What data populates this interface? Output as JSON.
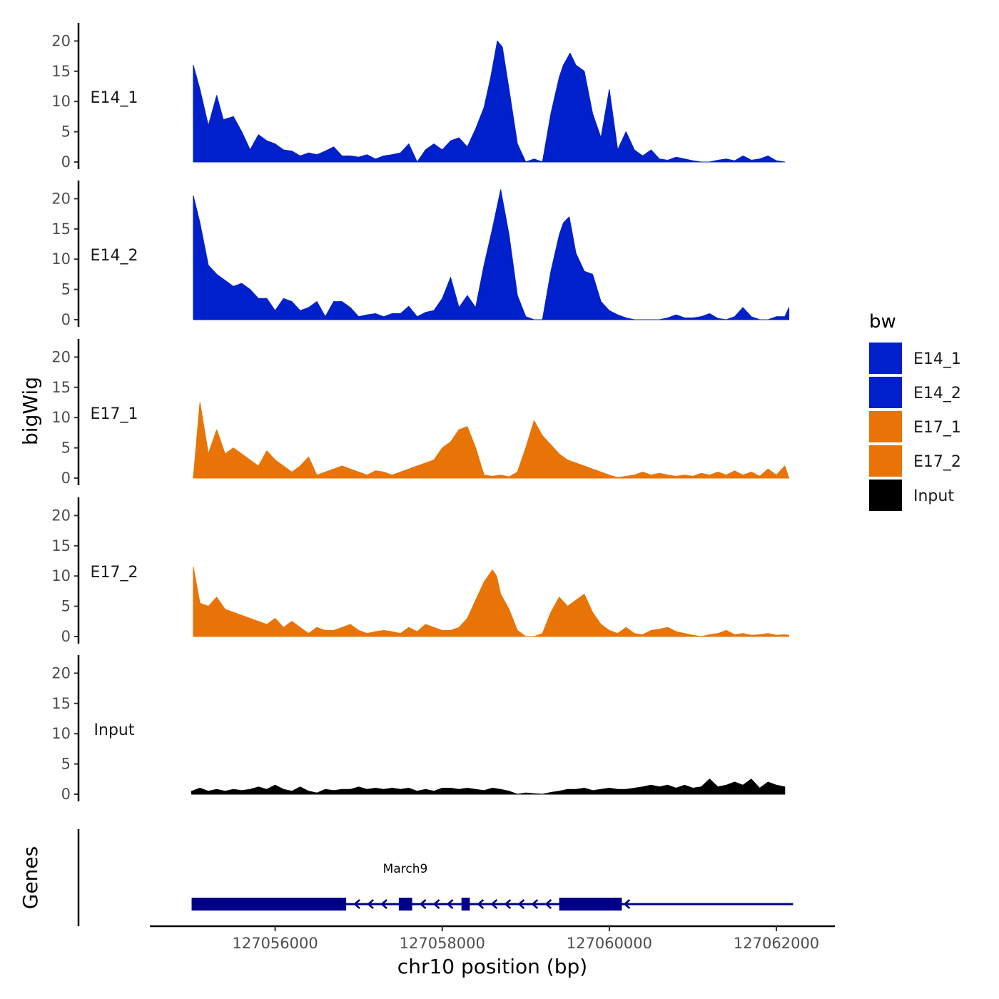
{
  "chart_data": {
    "type": "area",
    "title": "",
    "xlabel": "chr10 position (bp)",
    "ylabel": "bigWig",
    "genes_label": "Genes",
    "xlim": [
      127054500,
      127062700
    ],
    "ylim": [
      0,
      23
    ],
    "x_ticks": [
      127056000,
      127058000,
      127060000,
      127062000
    ],
    "x_tick_labels": [
      "127056000",
      "127058000",
      "127060000",
      "127062000"
    ],
    "y_ticks": [
      0,
      5,
      10,
      15,
      20
    ],
    "y_tick_labels": [
      "0",
      "5",
      "10",
      "15",
      "20"
    ],
    "legend": {
      "title": "bw",
      "items": [
        {
          "label": "E14_1",
          "color": "#0020CC"
        },
        {
          "label": "E14_2",
          "color": "#0020CC"
        },
        {
          "label": "E17_1",
          "color": "#E87407"
        },
        {
          "label": "E17_2",
          "color": "#E87407"
        },
        {
          "label": "Input",
          "color": "#000000"
        }
      ]
    },
    "series": [
      {
        "name": "E14_1",
        "color": "#0020CC",
        "x": [
          127055020,
          127055100,
          127055200,
          127055300,
          127055380,
          127055500,
          127055600,
          127055700,
          127055800,
          127055900,
          127056000,
          127056100,
          127056200,
          127056300,
          127056400,
          127056500,
          127056600,
          127056700,
          127056800,
          127056900,
          127057000,
          127057100,
          127057200,
          127057300,
          127057400,
          127057500,
          127057600,
          127057700,
          127057800,
          127057900,
          127058000,
          127058100,
          127058200,
          127058300,
          127058400,
          127058500,
          127058580,
          127058660,
          127058720,
          127058800,
          127058900,
          127059000,
          127059100,
          127059200,
          127059300,
          127059400,
          127059450,
          127059530,
          127059600,
          127059700,
          127059800,
          127059900,
          127060000,
          127060100,
          127060200,
          127060300,
          127060400,
          127060500,
          127060600,
          127060700,
          127060800,
          127060900,
          127061000,
          127061100,
          127061200,
          127061300,
          127061400,
          127061500,
          127061600,
          127061700,
          127061800,
          127061900,
          127062000,
          127062100
        ],
        "values": [
          16,
          12,
          6,
          11,
          7,
          7.5,
          5,
          2,
          4.5,
          3.5,
          3,
          2,
          1.8,
          1,
          1.5,
          1.2,
          1.8,
          2.5,
          1,
          1,
          0.8,
          1.2,
          0.5,
          1,
          1.2,
          1.5,
          3,
          0,
          2,
          3,
          2,
          3.5,
          4,
          2.5,
          5.5,
          9,
          14,
          20,
          19,
          12,
          3,
          0,
          0.5,
          0,
          8,
          14,
          16,
          18,
          16,
          15,
          8,
          4,
          12,
          2,
          5,
          2,
          1,
          2,
          0.5,
          0.3,
          0.8,
          0.5,
          0.2,
          0,
          0,
          0.3,
          0.5,
          0.2,
          1,
          0.3,
          0.5,
          1,
          0.2,
          0
        ]
      },
      {
        "name": "E14_2",
        "color": "#0020CC",
        "x": [
          127055020,
          127055100,
          127055200,
          127055300,
          127055400,
          127055500,
          127055600,
          127055700,
          127055800,
          127055900,
          127056000,
          127056100,
          127056200,
          127056300,
          127056400,
          127056500,
          127056600,
          127056700,
          127056800,
          127056900,
          127057000,
          127057100,
          127057200,
          127057300,
          127057400,
          127057500,
          127057600,
          127057700,
          127057800,
          127057900,
          127058000,
          127058100,
          127058200,
          127058300,
          127058400,
          127058500,
          127058600,
          127058700,
          127058800,
          127058900,
          127059000,
          127059100,
          127059200,
          127059300,
          127059400,
          127059450,
          127059520,
          127059600,
          127059700,
          127059800,
          127059900,
          127060000,
          127060100,
          127060200,
          127060300,
          127060400,
          127060500,
          127060600,
          127060700,
          127060800,
          127060900,
          127061000,
          127061100,
          127061200,
          127061300,
          127061400,
          127061500,
          127061600,
          127061700,
          127061800,
          127061900,
          127062000,
          127062100,
          127062150
        ],
        "values": [
          20.5,
          16,
          9,
          7.5,
          6.5,
          5.5,
          6,
          5,
          3.5,
          3.5,
          1.5,
          3.5,
          3,
          1.5,
          2,
          3,
          0.5,
          3,
          3,
          2,
          0.5,
          0.8,
          1,
          0.5,
          1,
          1,
          2.2,
          0.5,
          1.2,
          1.5,
          3.5,
          7,
          2,
          4,
          2,
          9,
          15,
          21.5,
          14,
          4,
          0.5,
          0,
          0,
          8,
          14,
          16,
          17,
          11,
          8,
          7.5,
          3,
          1.5,
          0.8,
          0.3,
          0,
          0,
          0,
          0,
          0.3,
          0.8,
          0.3,
          0.3,
          0.5,
          1,
          0.2,
          0,
          0.5,
          2,
          0.5,
          0,
          0,
          0.5,
          0.5,
          2
        ]
      },
      {
        "name": "E17_1",
        "color": "#E87407",
        "x": [
          127055020,
          127055100,
          127055200,
          127055300,
          127055400,
          127055500,
          127055600,
          127055700,
          127055800,
          127055900,
          127056000,
          127056100,
          127056200,
          127056300,
          127056400,
          127056500,
          127056600,
          127056700,
          127056800,
          127056900,
          127057000,
          127057100,
          127057200,
          127057300,
          127057400,
          127057500,
          127057600,
          127057700,
          127057800,
          127057900,
          127058000,
          127058100,
          127058200,
          127058300,
          127058400,
          127058500,
          127058600,
          127058700,
          127058800,
          127058900,
          127059000,
          127059100,
          127059200,
          127059300,
          127059400,
          127059500,
          127059600,
          127059700,
          127059800,
          127059900,
          127060000,
          127060100,
          127060200,
          127060300,
          127060400,
          127060500,
          127060600,
          127060700,
          127060800,
          127060900,
          127061000,
          127061100,
          127061200,
          127061300,
          127061400,
          127061500,
          127061600,
          127061700,
          127061800,
          127061900,
          127062000,
          127062100,
          127062150
        ],
        "values": [
          0,
          12.5,
          4,
          8,
          4,
          5,
          4,
          3,
          2,
          4.5,
          3,
          2,
          1,
          2,
          3.5,
          0.5,
          1,
          1.5,
          2,
          1.5,
          1,
          0.5,
          1.2,
          1,
          0.5,
          1,
          1.5,
          2,
          2.5,
          3,
          5,
          6,
          8,
          8.5,
          5,
          0.5,
          0.3,
          0.5,
          0.2,
          1,
          5,
          9.5,
          7,
          5.5,
          4,
          3,
          2.5,
          2,
          1.5,
          1,
          0.5,
          0.1,
          0.3,
          0.5,
          1,
          0.5,
          0.8,
          0.5,
          0.3,
          0.5,
          0.3,
          0.8,
          0.5,
          1,
          0.5,
          1.2,
          0.5,
          1,
          0.3,
          1.5,
          0.5,
          2,
          0
        ]
      },
      {
        "name": "E17_2",
        "color": "#E87407",
        "x": [
          127055020,
          127055100,
          127055200,
          127055300,
          127055400,
          127055500,
          127055600,
          127055700,
          127055800,
          127055900,
          127056000,
          127056100,
          127056200,
          127056300,
          127056400,
          127056500,
          127056600,
          127056700,
          127056800,
          127056900,
          127057000,
          127057100,
          127057200,
          127057300,
          127057400,
          127057500,
          127057600,
          127057700,
          127057800,
          127057900,
          127058000,
          127058100,
          127058200,
          127058300,
          127058400,
          127058500,
          127058600,
          127058650,
          127058700,
          127058800,
          127058900,
          127059000,
          127059100,
          127059200,
          127059300,
          127059400,
          127059500,
          127059600,
          127059700,
          127059800,
          127059900,
          127060000,
          127060100,
          127060200,
          127060300,
          127060400,
          127060500,
          127060600,
          127060700,
          127060800,
          127060900,
          127061000,
          127061100,
          127061200,
          127061300,
          127061400,
          127061500,
          127061600,
          127061700,
          127061800,
          127061900,
          127062000,
          127062100,
          127062150
        ],
        "values": [
          11.5,
          5.5,
          5,
          6.5,
          4.5,
          4,
          3.5,
          3,
          2.5,
          2,
          3,
          1.5,
          2.5,
          1.5,
          0.5,
          1.5,
          1,
          1,
          1.5,
          2,
          1,
          0.5,
          0.8,
          1,
          0.8,
          0.5,
          1.5,
          0.8,
          2,
          1.5,
          1,
          1,
          1.5,
          3,
          6,
          9,
          11,
          10,
          7,
          4.5,
          1,
          0,
          0,
          0.5,
          4,
          6.5,
          5,
          6,
          7,
          4,
          2,
          1,
          0.5,
          1.5,
          0.5,
          0.3,
          1,
          1.2,
          1.5,
          0.8,
          0.5,
          0.2,
          0,
          0.3,
          0.5,
          1,
          0.3,
          0.5,
          0.2,
          0.3,
          0.5,
          0.2,
          0.3,
          0.2
        ]
      },
      {
        "name": "Input",
        "color": "#000000",
        "x": [
          127055000,
          127055100,
          127055200,
          127055300,
          127055400,
          127055500,
          127055600,
          127055700,
          127055800,
          127055900,
          127056000,
          127056100,
          127056200,
          127056300,
          127056400,
          127056500,
          127056600,
          127056700,
          127056800,
          127056900,
          127057000,
          127057100,
          127057200,
          127057300,
          127057400,
          127057500,
          127057600,
          127057700,
          127057800,
          127057900,
          127058000,
          127058100,
          127058200,
          127058300,
          127058400,
          127058500,
          127058600,
          127058700,
          127058800,
          127058900,
          127059000,
          127059100,
          127059200,
          127059300,
          127059400,
          127059500,
          127059600,
          127059700,
          127059800,
          127059900,
          127060000,
          127060100,
          127060200,
          127060300,
          127060400,
          127060500,
          127060600,
          127060700,
          127060800,
          127060900,
          127061000,
          127061100,
          127061200,
          127061300,
          127061400,
          127061500,
          127061600,
          127061700,
          127061800,
          127061900,
          127062000,
          127062100
        ],
        "values": [
          0.5,
          1,
          0.5,
          0.8,
          0.5,
          0.8,
          0.6,
          0.8,
          1.2,
          0.8,
          1.5,
          0.8,
          0.5,
          1.2,
          0.5,
          0.2,
          0.8,
          0.6,
          0.8,
          0.8,
          1.2,
          0.8,
          1,
          0.8,
          1,
          0.8,
          1,
          0.5,
          0.8,
          0.5,
          1,
          1,
          0.8,
          1,
          0.8,
          0.6,
          1,
          0.8,
          0.5,
          0,
          0.2,
          0.1,
          0,
          0.3,
          0.5,
          0.8,
          0.8,
          1,
          0.6,
          0.8,
          1,
          0.8,
          0.8,
          1,
          1.2,
          1.5,
          1.2,
          1.5,
          1,
          1.5,
          1,
          1.2,
          2.5,
          1.2,
          1.5,
          2,
          1.5,
          2.5,
          1,
          2,
          1.5,
          1.2
        ]
      }
    ],
    "genes": [
      {
        "name": "March9",
        "start": 127055000,
        "end": 127062200,
        "strand": "-",
        "exons": [
          {
            "start": 127055000,
            "end": 127056850
          },
          {
            "start": 127057480,
            "end": 127057640
          },
          {
            "start": 127058230,
            "end": 127058330
          },
          {
            "start": 127059400,
            "end": 127060150
          }
        ]
      }
    ]
  }
}
